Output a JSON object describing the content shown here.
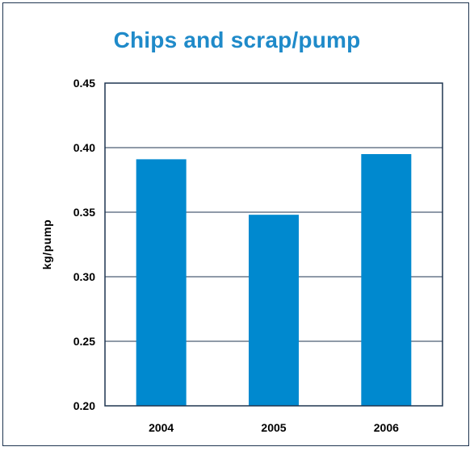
{
  "chart_data": {
    "type": "bar",
    "title": "Chips and scrap/pump",
    "xlabel": "",
    "ylabel": "kg/pump",
    "categories": [
      "2004",
      "2005",
      "2006"
    ],
    "values": [
      0.391,
      0.348,
      0.395
    ],
    "ylim": [
      0.2,
      0.45
    ],
    "yticks": [
      "0.45",
      "0.40",
      "0.35",
      "0.30",
      "0.25",
      "0.20"
    ],
    "grid": true,
    "bar_color": "#0089cf",
    "title_color": "#1f8ac9"
  }
}
